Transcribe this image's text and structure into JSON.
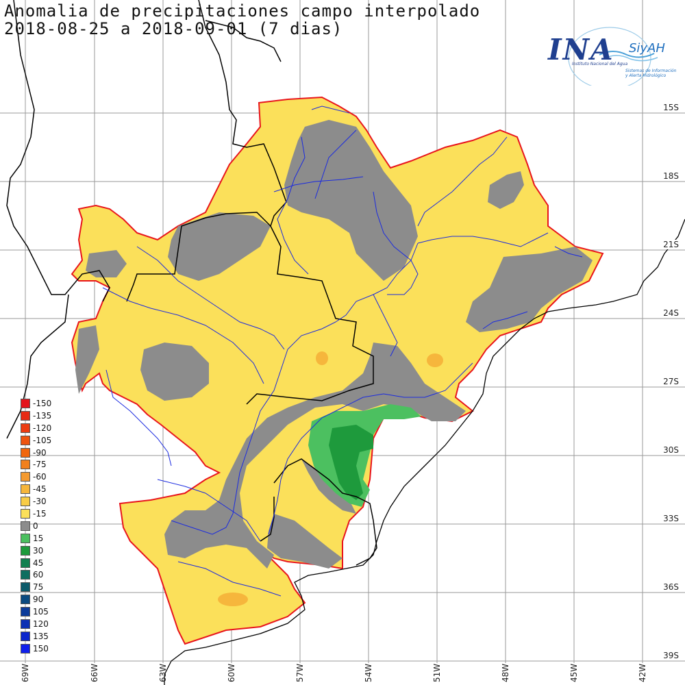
{
  "title": {
    "line1": "Anomalia de precipitaciones campo interpolado",
    "line2": "2018-08-25 a 2018-09-01 (7 dias)"
  },
  "logo": {
    "ina": "INA",
    "siyah": "SiyAH",
    "sub1": "Instituto Nacional del Agua",
    "sub2": "Sistemas de Información",
    "sub3": "y Alerta Hidrológico"
  },
  "latitude_labels": [
    "15S",
    "18S",
    "21S",
    "24S",
    "27S",
    "30S",
    "33S",
    "36S",
    "39S"
  ],
  "longitude_labels": [
    "69W",
    "66W",
    "63W",
    "60W",
    "57W",
    "54W",
    "51W",
    "48W",
    "45W",
    "42W"
  ],
  "legend": [
    {
      "label": "-150",
      "color": "#e4141c"
    },
    {
      "label": "-135",
      "color": "#e82a14"
    },
    {
      "label": "-120",
      "color": "#ec3c12"
    },
    {
      "label": "-105",
      "color": "#ee5410"
    },
    {
      "label": "-90",
      "color": "#f0660e"
    },
    {
      "label": "-75",
      "color": "#f2801e"
    },
    {
      "label": "-60",
      "color": "#f49a30"
    },
    {
      "label": "-45",
      "color": "#f6b63c"
    },
    {
      "label": "-30",
      "color": "#f8cc46"
    },
    {
      "label": "-15",
      "color": "#fbe05a"
    },
    {
      "label": "0",
      "color": "#8c8c8c"
    },
    {
      "label": "15",
      "color": "#4cc060"
    },
    {
      "label": "30",
      "color": "#1e9a3c"
    },
    {
      "label": "45",
      "color": "#128050"
    },
    {
      "label": "60",
      "color": "#0e6e60"
    },
    {
      "label": "75",
      "color": "#0c5a6a"
    },
    {
      "label": "90",
      "color": "#0a4a80"
    },
    {
      "label": "105",
      "color": "#0c3c9a"
    },
    {
      "label": "120",
      "color": "#0c30b4"
    },
    {
      "label": "135",
      "color": "#0c26cc"
    },
    {
      "label": "150",
      "color": "#1020ec"
    }
  ],
  "colors": {
    "basin_outline": "#e8141c",
    "rivers": "#1a2ae0",
    "borders": "#000000",
    "gridlines": "#9a9a9a"
  }
}
